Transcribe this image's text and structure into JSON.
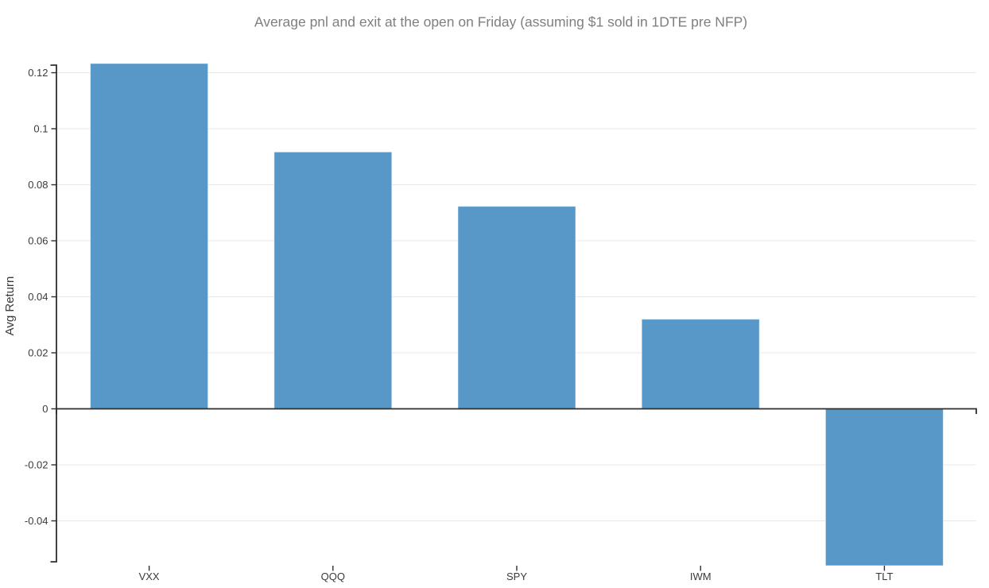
{
  "page": {
    "background": "#ffffff"
  },
  "chart_data": {
    "type": "bar",
    "title": "Average pnl and exit at the open on Friday (assuming $1 sold in 1DTE pre NFP)",
    "xlabel": "",
    "ylabel": "Avg Return",
    "categories": [
      "VXX",
      "QQQ",
      "SPY",
      "IWM",
      "TLT"
    ],
    "values": [
      0.1233,
      0.0917,
      0.0723,
      0.032,
      -0.056
    ],
    "ylim": [
      -0.056,
      0.1227
    ],
    "yticks": [
      {
        "value": 0.12,
        "label": "0.12"
      },
      {
        "value": 0.1,
        "label": "0.1"
      },
      {
        "value": 0.08,
        "label": "0.08"
      },
      {
        "value": 0.06,
        "label": "0.06"
      },
      {
        "value": 0.04,
        "label": "0.04"
      },
      {
        "value": 0.02,
        "label": "0.02"
      },
      {
        "value": 0,
        "label": "0"
      },
      {
        "value": -0.02,
        "label": "-0.02"
      },
      {
        "value": -0.04,
        "label": "-0.04"
      }
    ],
    "grid": true,
    "legend": false,
    "colors": {
      "bar": "#5798c8",
      "bar_edge": "rgba(255,255,255,0.5)",
      "grid": "#e8e8e8",
      "axis": "#2e2e2e",
      "tick_label": "#3a3a3a",
      "title": "#7f7f7f"
    }
  }
}
